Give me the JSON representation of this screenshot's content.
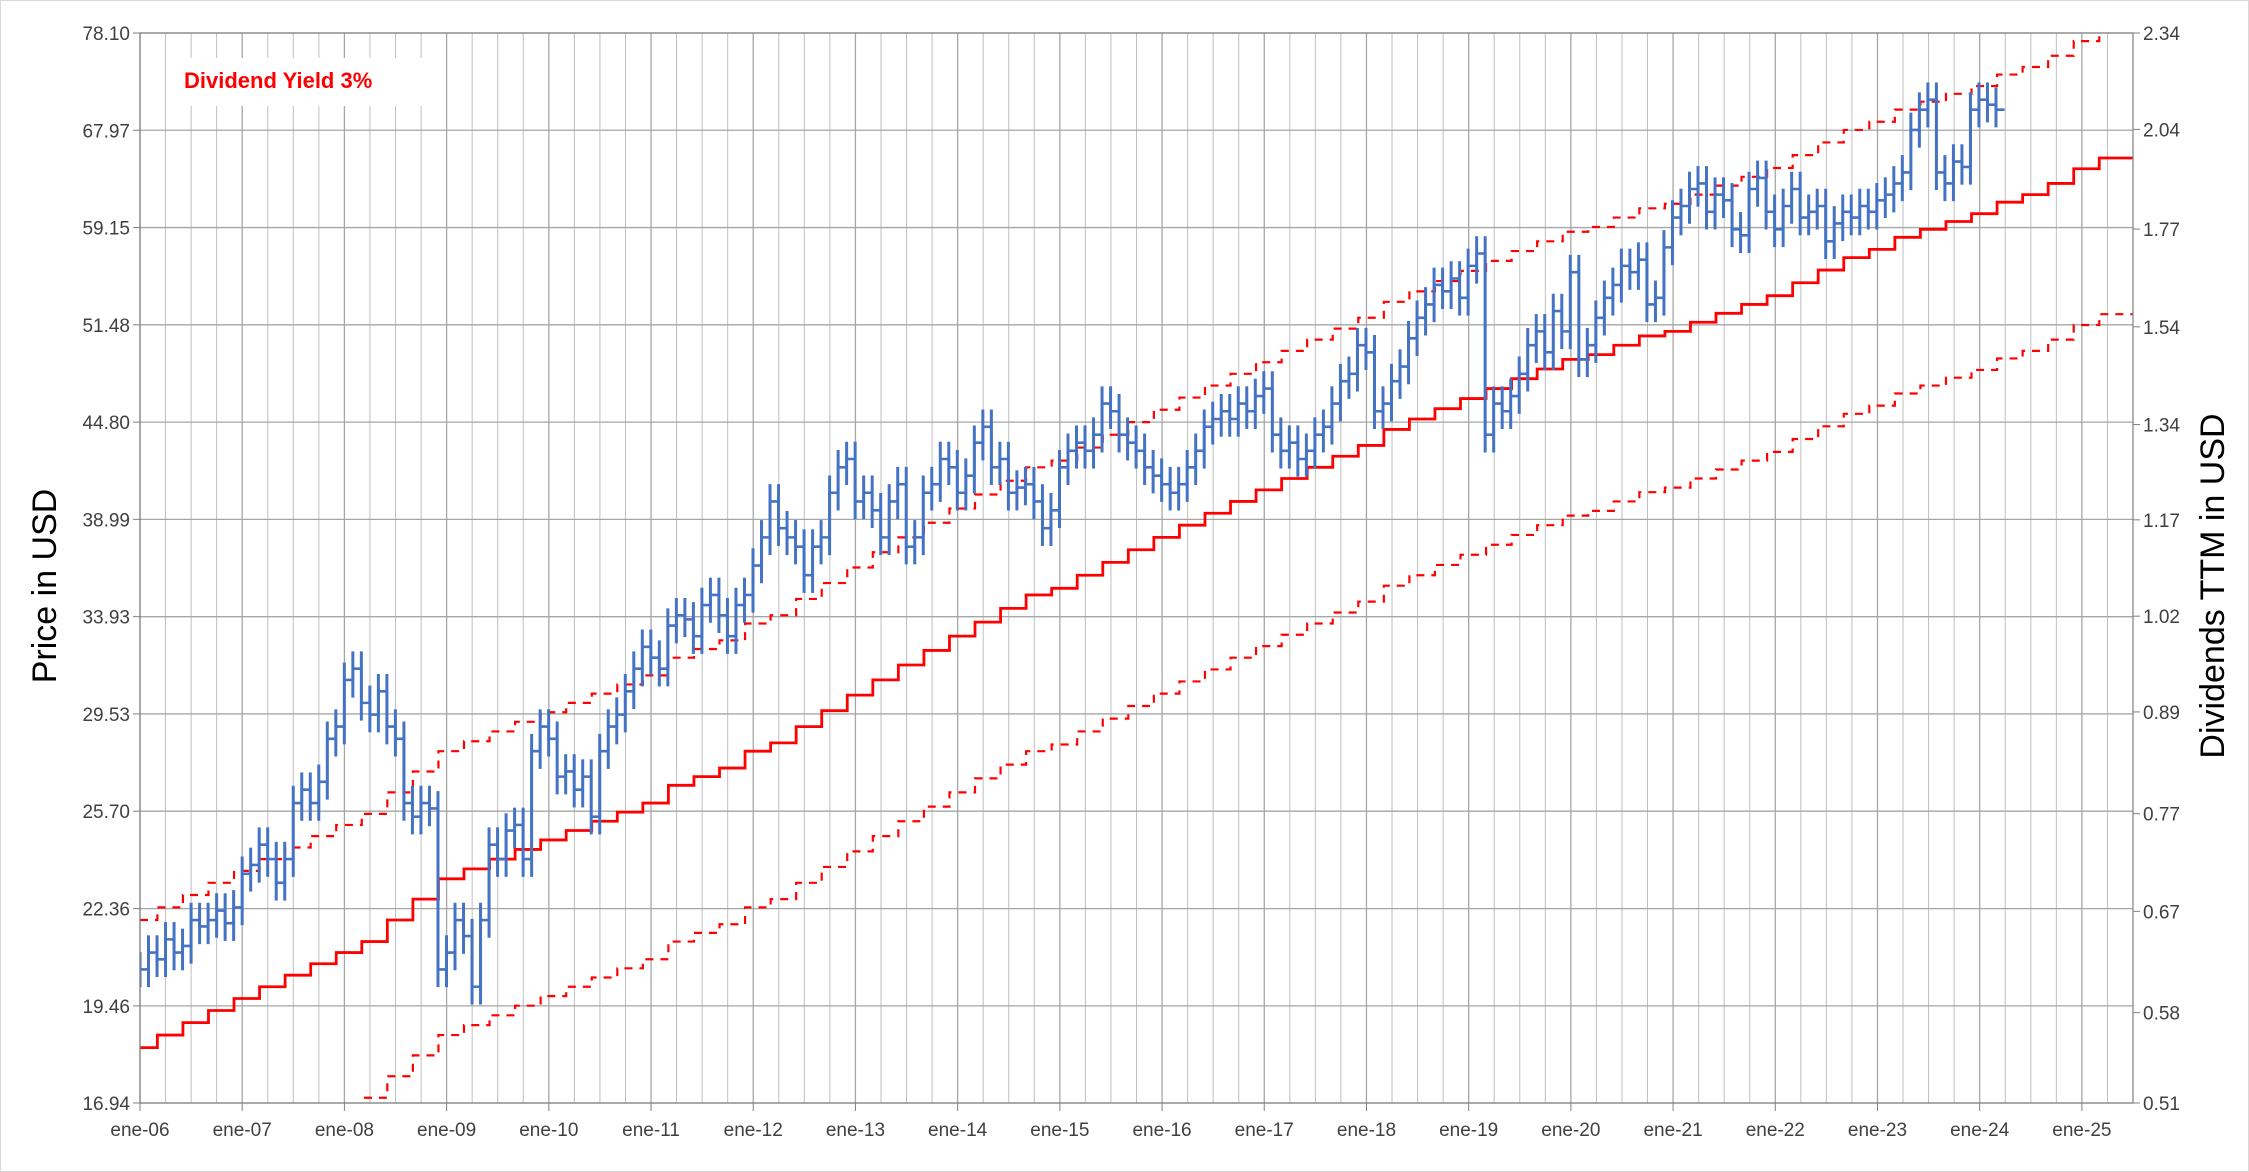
{
  "chart_data": {
    "type": "line",
    "title": "",
    "legend": {
      "label": "Dividend Yield 3%",
      "color": "#ff0000",
      "placement": "top-left"
    },
    "ylabel_left": "Price in USD",
    "ylabel_right": "Dividends TTM in USD",
    "y_left_scale": "log",
    "y_left_range": [
      16.94,
      78.1
    ],
    "y_left_ticks": [
      "78.10",
      "67.97",
      "59.15",
      "51.48",
      "44.80",
      "38.99",
      "33.93",
      "29.53",
      "25.70",
      "22.36",
      "19.46",
      "16.94"
    ],
    "y_right_range": [
      0.51,
      2.34
    ],
    "y_right_ticks": [
      "2.34",
      "2.04",
      "1.77",
      "1.54",
      "1.34",
      "1.17",
      "1.02",
      "0.89",
      "0.77",
      "0.67",
      "0.58",
      "0.51"
    ],
    "x_range": [
      2006.0,
      2025.5
    ],
    "x_ticks": [
      "ene-06",
      "ene-07",
      "ene-08",
      "ene-09",
      "ene-10",
      "ene-11",
      "ene-12",
      "ene-13",
      "ene-14",
      "ene-15",
      "ene-16",
      "ene-17",
      "ene-18",
      "ene-19",
      "ene-20",
      "ene-21",
      "ene-22",
      "ene-23",
      "ene-24",
      "ene-25"
    ],
    "colors": {
      "price": "#4472c4",
      "dividend": "#ff0000",
      "grid": "#bfbfbf",
      "grid_major": "#a6a6a6"
    },
    "series": [
      {
        "name": "Price",
        "kind": "monthly-range",
        "x_start": 2006.0,
        "x_step": 0.0833,
        "close": [
          20.5,
          21.0,
          20.8,
          21.4,
          21.0,
          21.2,
          22.0,
          21.8,
          22.0,
          22.3,
          21.9,
          22.4,
          23.5,
          23.8,
          24.5,
          24.0,
          23.2,
          24.0,
          26.0,
          26.5,
          26.0,
          26.8,
          28.5,
          29.0,
          31.0,
          31.5,
          30.0,
          29.5,
          30.5,
          29.0,
          28.5,
          26.0,
          25.5,
          26.0,
          25.8,
          20.5,
          21.0,
          22.0,
          21.5,
          20.0,
          22.0,
          24.5,
          24.0,
          25.0,
          25.2,
          24.0,
          28.0,
          29.0,
          28.5,
          27.0,
          27.2,
          26.5,
          27.0,
          25.5,
          28.0,
          29.0,
          29.5,
          30.5,
          31.5,
          32.5,
          32.0,
          31.5,
          33.5,
          34.0,
          33.8,
          33.0,
          34.5,
          35.0,
          34.0,
          33.0,
          34.5,
          35.0,
          36.5,
          38.0,
          40.0,
          38.5,
          38.0,
          37.5,
          36.0,
          37.5,
          38.0,
          40.5,
          42.0,
          42.5,
          40.0,
          40.5,
          39.5,
          38.0,
          40.0,
          41.0,
          37.5,
          38.0,
          40.5,
          41.0,
          42.5,
          42.0,
          40.5,
          41.5,
          43.5,
          44.5,
          42.0,
          42.5,
          40.5,
          40.8,
          41.0,
          40.0,
          38.5,
          39.5,
          42.0,
          43.0,
          43.5,
          43.0,
          44.0,
          46.0,
          45.5,
          44.0,
          43.5,
          43.0,
          42.0,
          41.5,
          41.0,
          40.5,
          41.0,
          42.0,
          43.0,
          44.5,
          45.0,
          45.5,
          45.0,
          46.0,
          45.5,
          46.5,
          47.0,
          44.0,
          43.0,
          43.5,
          42.5,
          43.0,
          44.0,
          44.5,
          46.0,
          47.5,
          48.0,
          50.0,
          49.5,
          45.5,
          46.0,
          47.5,
          48.5,
          50.5,
          52.0,
          53.0,
          54.5,
          54.0,
          55.0,
          53.5,
          56.0,
          57.0,
          44.0,
          46.0,
          45.5,
          46.5,
          48.0,
          50.0,
          51.0,
          49.5,
          52.5,
          51.0,
          55.5,
          49.0,
          50.0,
          52.0,
          53.5,
          54.5,
          56.0,
          55.5,
          56.5,
          53.0,
          53.5,
          57.5,
          60.0,
          61.0,
          62.5,
          63.0,
          60.5,
          62.0,
          61.5,
          59.0,
          58.5,
          62.5,
          63.5,
          60.5,
          59.0,
          61.0,
          62.5,
          60.0,
          60.5,
          61.0,
          58.0,
          59.5,
          60.5,
          60.0,
          61.0,
          60.5,
          61.5,
          62.0,
          63.0,
          64.0,
          68.0,
          70.0,
          71.0,
          64.0,
          63.0,
          65.0,
          64.5,
          70.0,
          71.0,
          70.5,
          70.0
        ]
      },
      {
        "name": "Dividends TTM",
        "kind": "step",
        "steps": [
          [
            2006.0,
            0.55
          ],
          [
            2006.17,
            0.56
          ],
          [
            2006.42,
            0.57
          ],
          [
            2006.67,
            0.58
          ],
          [
            2006.92,
            0.59
          ],
          [
            2007.17,
            0.6
          ],
          [
            2007.42,
            0.61
          ],
          [
            2007.67,
            0.62
          ],
          [
            2007.92,
            0.63
          ],
          [
            2008.17,
            0.64
          ],
          [
            2008.42,
            0.66
          ],
          [
            2008.67,
            0.68
          ],
          [
            2008.92,
            0.7
          ],
          [
            2009.17,
            0.71
          ],
          [
            2009.42,
            0.72
          ],
          [
            2009.67,
            0.73
          ],
          [
            2009.92,
            0.74
          ],
          [
            2010.17,
            0.75
          ],
          [
            2010.42,
            0.76
          ],
          [
            2010.67,
            0.77
          ],
          [
            2010.92,
            0.78
          ],
          [
            2011.17,
            0.8
          ],
          [
            2011.42,
            0.81
          ],
          [
            2011.67,
            0.82
          ],
          [
            2011.92,
            0.84
          ],
          [
            2012.17,
            0.85
          ],
          [
            2012.42,
            0.87
          ],
          [
            2012.67,
            0.89
          ],
          [
            2012.92,
            0.91
          ],
          [
            2013.17,
            0.93
          ],
          [
            2013.42,
            0.95
          ],
          [
            2013.67,
            0.97
          ],
          [
            2013.92,
            0.99
          ],
          [
            2014.17,
            1.01
          ],
          [
            2014.42,
            1.03
          ],
          [
            2014.67,
            1.05
          ],
          [
            2014.92,
            1.06
          ],
          [
            2015.17,
            1.08
          ],
          [
            2015.42,
            1.1
          ],
          [
            2015.67,
            1.12
          ],
          [
            2015.92,
            1.14
          ],
          [
            2016.17,
            1.16
          ],
          [
            2016.42,
            1.18
          ],
          [
            2016.67,
            1.2
          ],
          [
            2016.92,
            1.22
          ],
          [
            2017.17,
            1.24
          ],
          [
            2017.42,
            1.26
          ],
          [
            2017.67,
            1.28
          ],
          [
            2017.92,
            1.3
          ],
          [
            2018.17,
            1.33
          ],
          [
            2018.42,
            1.35
          ],
          [
            2018.67,
            1.37
          ],
          [
            2018.92,
            1.39
          ],
          [
            2019.17,
            1.41
          ],
          [
            2019.42,
            1.43
          ],
          [
            2019.67,
            1.45
          ],
          [
            2019.92,
            1.47
          ],
          [
            2020.17,
            1.48
          ],
          [
            2020.42,
            1.5
          ],
          [
            2020.67,
            1.52
          ],
          [
            2020.92,
            1.53
          ],
          [
            2021.17,
            1.55
          ],
          [
            2021.42,
            1.57
          ],
          [
            2021.67,
            1.59
          ],
          [
            2021.92,
            1.61
          ],
          [
            2022.17,
            1.64
          ],
          [
            2022.42,
            1.67
          ],
          [
            2022.67,
            1.7
          ],
          [
            2022.92,
            1.72
          ],
          [
            2023.17,
            1.75
          ],
          [
            2023.42,
            1.77
          ],
          [
            2023.67,
            1.79
          ],
          [
            2023.92,
            1.81
          ],
          [
            2024.17,
            1.84
          ],
          [
            2024.42,
            1.86
          ],
          [
            2024.67,
            1.89
          ],
          [
            2024.92,
            1.93
          ],
          [
            2025.17,
            1.96
          ],
          [
            2025.5,
            1.96
          ]
        ]
      },
      {
        "name": "Upper band",
        "kind": "dashed-step",
        "factor": 1.2
      },
      {
        "name": "Lower band",
        "kind": "dashed-step",
        "factor": 0.8
      }
    ]
  }
}
